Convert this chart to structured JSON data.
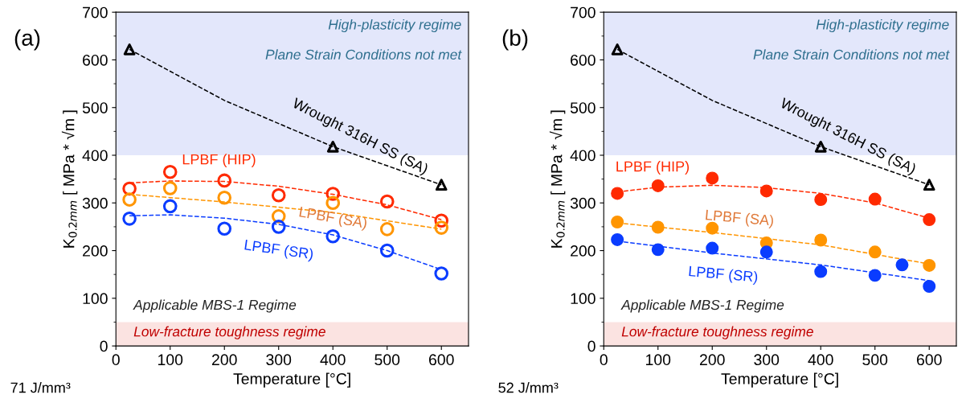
{
  "chart_data": [
    {
      "type": "scatter",
      "title": "(a)",
      "xlabel": "Temperature [°C]",
      "ylabel": "K$_{0.2mm}$ [ MPa * √m ]",
      "xlim": [
        0,
        650
      ],
      "xticks": [
        0,
        100,
        200,
        300,
        400,
        500,
        600
      ],
      "ylim": [
        0,
        700
      ],
      "yticks": [
        0,
        100,
        200,
        300,
        400,
        500,
        600,
        700
      ],
      "grid": false,
      "legend": false,
      "bands": [
        {
          "axis": "y",
          "from": 400,
          "to": 700,
          "color": "#e3e7fb"
        },
        {
          "axis": "y",
          "from": 0,
          "to": 50,
          "color": "#fbe3e1"
        }
      ],
      "annotations": [
        "High-plasticity regime",
        "Plane Strain Conditions not met",
        "Applicable MBS-1 Regime",
        "Low-fracture toughness regime",
        "71 J/mm³"
      ],
      "series": [
        {
          "name": "Wrought 316H SS (SA)",
          "type": "scatter",
          "marker": "triangle",
          "color": "#000000",
          "x": [
            25,
            400,
            600
          ],
          "values": [
            622,
            418,
            338
          ]
        },
        {
          "name": "LPBF (HIP)",
          "type": "scatter",
          "marker": "circle",
          "color": "#ff2a00",
          "x": [
            25,
            100,
            200,
            300,
            400,
            500,
            600
          ],
          "values": [
            330,
            365,
            347,
            316,
            319,
            303,
            263
          ]
        },
        {
          "name": "LPBF (SA)",
          "type": "scatter",
          "marker": "circle",
          "color": "#ff9500",
          "x": [
            25,
            100,
            200,
            300,
            400,
            500,
            600
          ],
          "values": [
            307,
            331,
            311,
            272,
            300,
            245,
            248
          ]
        },
        {
          "name": "LPBF (SR)",
          "type": "scatter",
          "marker": "circle",
          "color": "#0a3cff",
          "x": [
            25,
            100,
            200,
            300,
            400,
            500,
            600
          ],
          "values": [
            267,
            293,
            246,
            250,
            230,
            200,
            152
          ]
        },
        {
          "type": "line",
          "line_style": "dashed",
          "marker": "none",
          "color": "#000000",
          "x": [
            25,
            200,
            400,
            600
          ],
          "values": [
            622,
            515,
            418,
            338
          ]
        },
        {
          "type": "line",
          "line_style": "dashed",
          "marker": "none",
          "color": "#ff2a00",
          "x": [
            25,
            100,
            200,
            300,
            400,
            500,
            600
          ],
          "values": [
            342,
            346,
            345,
            335,
            318,
            296,
            265
          ]
        },
        {
          "type": "line",
          "line_style": "dashed",
          "marker": "none",
          "color": "#ff9500",
          "x": [
            25,
            200,
            400,
            600
          ],
          "values": [
            318,
            302,
            280,
            245
          ]
        },
        {
          "type": "line",
          "line_style": "dashed",
          "marker": "none",
          "color": "#0a3cff",
          "x": [
            25,
            100,
            200,
            300,
            400,
            500,
            600
          ],
          "values": [
            273,
            275,
            268,
            255,
            233,
            200,
            160
          ]
        }
      ]
    },
    {
      "type": "scatter",
      "title": "(b)",
      "xlabel": "Temperature [°C]",
      "ylabel": "K$_{0.2mm}$ [ MPa * √m ]",
      "xlim": [
        0,
        650
      ],
      "xticks": [
        0,
        100,
        200,
        300,
        400,
        500,
        600
      ],
      "ylim": [
        0,
        700
      ],
      "yticks": [
        0,
        100,
        200,
        300,
        400,
        500,
        600,
        700
      ],
      "grid": false,
      "legend": false,
      "bands": [
        {
          "axis": "y",
          "from": 400,
          "to": 700,
          "color": "#e3e7fb"
        },
        {
          "axis": "y",
          "from": 0,
          "to": 50,
          "color": "#fbe3e1"
        }
      ],
      "annotations": [
        "High-plasticity regime",
        "Plane Strain Conditions not met",
        "Applicable MBS-1 Regime",
        "Low-fracture toughness regime",
        "52 J/mm³"
      ],
      "series": [
        {
          "name": "Wrought 316H SS (SA)",
          "type": "scatter",
          "marker": "triangle",
          "color": "#000000",
          "x": [
            25,
            400,
            600
          ],
          "values": [
            622,
            418,
            338
          ]
        },
        {
          "name": "LPBF (HIP)",
          "type": "scatter",
          "marker": "circle",
          "color": "#ff2a00",
          "x": [
            25,
            100,
            200,
            300,
            400,
            500,
            600
          ],
          "values": [
            320,
            336,
            352,
            325,
            307,
            308,
            265
          ]
        },
        {
          "name": "LPBF (SA)",
          "type": "scatter",
          "marker": "circle",
          "color": "#ff9500",
          "x": [
            25,
            100,
            200,
            300,
            400,
            500,
            600
          ],
          "values": [
            260,
            249,
            247,
            216,
            222,
            197,
            169
          ]
        },
        {
          "name": "LPBF (SR)",
          "type": "scatter",
          "marker": "circle",
          "color": "#0a3cff",
          "x": [
            25,
            100,
            200,
            300,
            400,
            500,
            550,
            600
          ],
          "values": [
            223,
            202,
            205,
            197,
            156,
            148,
            170,
            125
          ]
        },
        {
          "type": "line",
          "line_style": "dashed",
          "marker": "none",
          "color": "#000000",
          "x": [
            25,
            200,
            400,
            600
          ],
          "values": [
            622,
            515,
            418,
            338
          ]
        },
        {
          "type": "line",
          "line_style": "dashed",
          "marker": "none",
          "color": "#ff2a00",
          "x": [
            25,
            100,
            200,
            300,
            400,
            500,
            600
          ],
          "values": [
            323,
            333,
            337,
            332,
            320,
            300,
            268
          ]
        },
        {
          "type": "line",
          "line_style": "dashed",
          "marker": "none",
          "color": "#ff9500",
          "x": [
            25,
            200,
            400,
            600
          ],
          "values": [
            258,
            238,
            212,
            172
          ]
        },
        {
          "type": "line",
          "line_style": "dashed",
          "marker": "none",
          "color": "#0a3cff",
          "x": [
            25,
            200,
            400,
            600
          ],
          "values": [
            220,
            195,
            170,
            137
          ]
        }
      ]
    }
  ]
}
